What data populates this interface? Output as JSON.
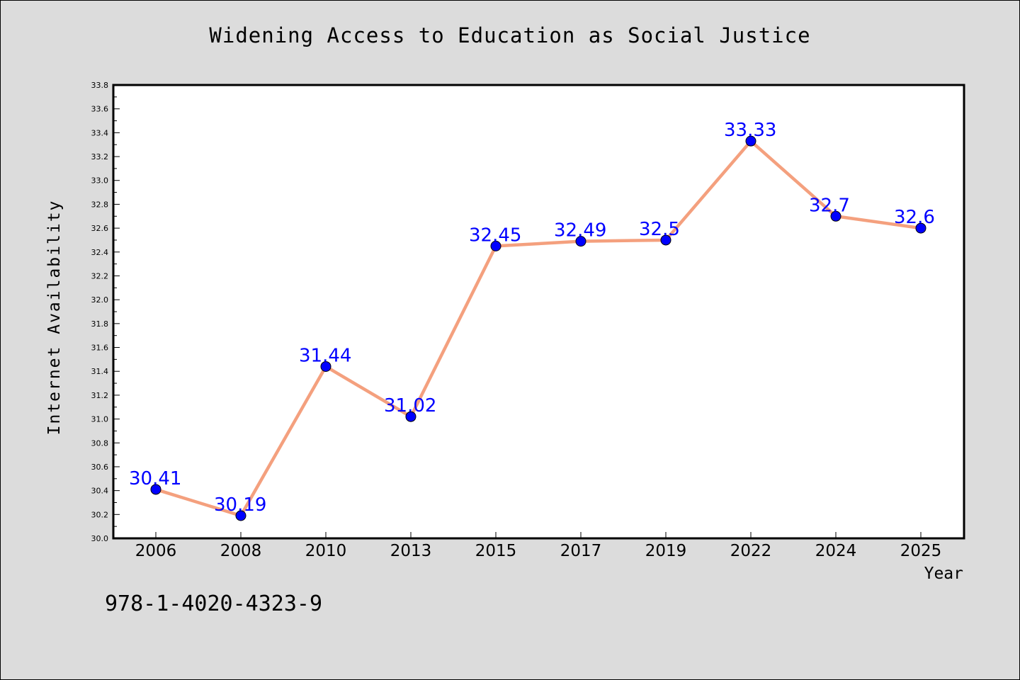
{
  "chart_data": {
    "type": "line",
    "title": "Widening Access to Education as Social Justice",
    "xlabel": "Year",
    "ylabel": "Internet Availability",
    "categories": [
      "2006",
      "2008",
      "2010",
      "2013",
      "2015",
      "2017",
      "2019",
      "2022",
      "2024",
      "2025"
    ],
    "series": [
      {
        "values": [
          30.41,
          30.19,
          31.44,
          31.02,
          32.45,
          32.49,
          32.5,
          33.33,
          32.7,
          32.6
        ],
        "data_labels": [
          "30.41",
          "30.19",
          "31.44",
          "31.02",
          "32.45",
          "32.49",
          "32.5",
          "33.33",
          "32.7",
          "32.6"
        ]
      }
    ],
    "ylim": [
      30.0,
      33.8
    ],
    "yticks": [
      "30.0",
      "30.2",
      "30.4",
      "30.6",
      "30.8",
      "31.0",
      "31.2",
      "31.4",
      "31.6",
      "31.8",
      "32.0",
      "32.2",
      "32.4",
      "32.6",
      "32.8",
      "33.0",
      "33.2",
      "33.4",
      "33.6",
      "33.8"
    ],
    "grid": false,
    "colors": {
      "line": "#f4a07e",
      "marker": "#0000ff",
      "label": "#0000ff",
      "background": "#dcdcdc",
      "plot_background": "#ffffff"
    }
  },
  "footer": {
    "isbn": "978-1-4020-4323-9"
  }
}
